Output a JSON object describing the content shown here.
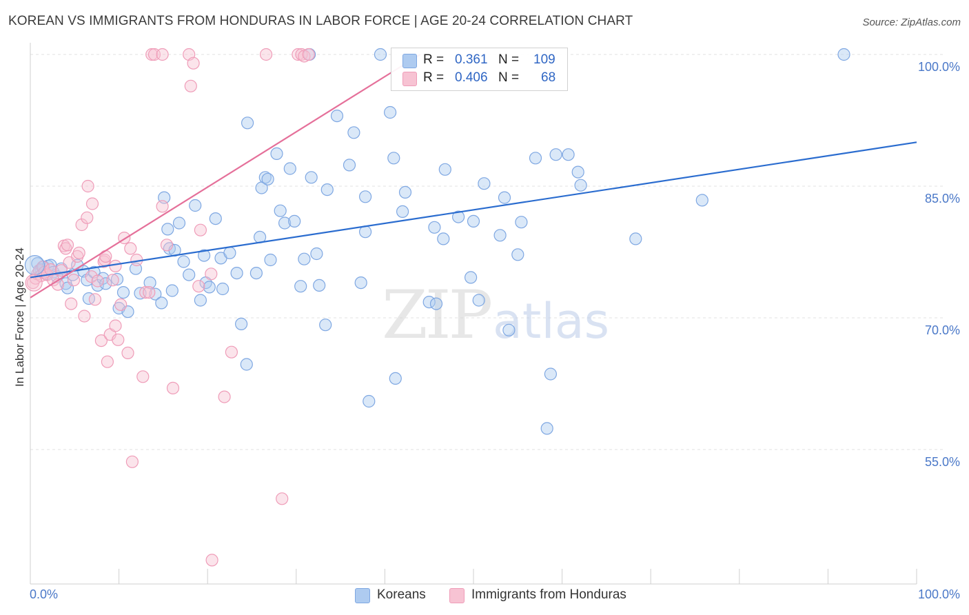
{
  "title": "KOREAN VS IMMIGRANTS FROM HONDURAS IN LABOR FORCE | AGE 20-24 CORRELATION CHART",
  "source": "Source: ZipAtlas.com",
  "watermark": {
    "zip": "ZIP",
    "atlas": "atlas"
  },
  "colors": {
    "korean": "#7ea7e2",
    "korean_fill": "#aecbf0",
    "korean_line": "#2a6ccf",
    "honduras": "#ef9cb8",
    "honduras_fill": "#f7c3d3",
    "honduras_line": "#e5709a",
    "axis_text": "#4a78c8",
    "grid": "#e0e0e0"
  },
  "stats_legend": {
    "rows": [
      {
        "r_label": "R =",
        "r_value": "0.361",
        "n_label": "N =",
        "n_value": "109"
      },
      {
        "r_label": "R =",
        "r_value": "0.406",
        "n_label": "N =",
        "n_value": "68"
      }
    ]
  },
  "bottom_legend": [
    {
      "label": "Koreans"
    },
    {
      "label": "Immigrants from Honduras"
    }
  ],
  "chart_data": {
    "type": "scatter",
    "title": "KOREAN VS IMMIGRANTS FROM HONDURAS IN LABOR FORCE | AGE 20-24 CORRELATION CHART",
    "xlabel": "",
    "ylabel": "In Labor Force | Age 20-24",
    "xlim": [
      0,
      100
    ],
    "ylim": [
      40,
      101
    ],
    "x_tick_labels": [
      "0.0%",
      "100.0%"
    ],
    "y_ticks": [
      55,
      70,
      85,
      100
    ],
    "y_tick_labels": [
      "55.0%",
      "70.0%",
      "85.0%",
      "100.0%"
    ],
    "grid": true,
    "legend_position": "top-center",
    "series": [
      {
        "name": "Koreans",
        "r": 0.361,
        "n": 109,
        "trend": {
          "x": [
            0,
            100
          ],
          "y": [
            74.6,
            90.0
          ]
        },
        "points": [
          [
            0.8,
            76.2
          ],
          [
            1.2,
            75.5
          ],
          [
            1.5,
            75.8
          ],
          [
            1.8,
            75.0
          ],
          [
            2.0,
            75.9
          ],
          [
            2.3,
            76.0
          ],
          [
            2.6,
            75.2
          ],
          [
            3.0,
            74.7
          ],
          [
            3.5,
            75.6
          ],
          [
            4.0,
            73.9
          ],
          [
            4.2,
            73.4
          ],
          [
            4.8,
            74.9
          ],
          [
            5.3,
            76.0
          ],
          [
            6.0,
            75.3
          ],
          [
            6.4,
            74.3
          ],
          [
            6.6,
            72.2
          ],
          [
            7.2,
            75.2
          ],
          [
            7.6,
            73.7
          ],
          [
            8.2,
            74.5
          ],
          [
            8.5,
            73.9
          ],
          [
            9.8,
            74.4
          ],
          [
            10.0,
            71.1
          ],
          [
            10.5,
            72.9
          ],
          [
            11.0,
            70.7
          ],
          [
            11.9,
            75.6
          ],
          [
            12.4,
            72.8
          ],
          [
            13.5,
            74.0
          ],
          [
            14.1,
            72.7
          ],
          [
            14.8,
            71.7
          ],
          [
            15.1,
            83.7
          ],
          [
            15.5,
            80.1
          ],
          [
            15.7,
            77.9
          ],
          [
            16.0,
            73.1
          ],
          [
            16.3,
            77.7
          ],
          [
            16.8,
            80.8
          ],
          [
            17.3,
            76.4
          ],
          [
            17.9,
            74.9
          ],
          [
            18.6,
            82.8
          ],
          [
            19.2,
            72.0
          ],
          [
            19.6,
            77.1
          ],
          [
            19.8,
            74.0
          ],
          [
            20.2,
            73.5
          ],
          [
            20.9,
            81.3
          ],
          [
            21.5,
            76.8
          ],
          [
            21.7,
            73.3
          ],
          [
            22.5,
            77.4
          ],
          [
            23.3,
            75.1
          ],
          [
            23.8,
            69.3
          ],
          [
            24.4,
            64.7
          ],
          [
            24.5,
            92.2
          ],
          [
            25.5,
            75.1
          ],
          [
            25.9,
            79.2
          ],
          [
            26.1,
            84.8
          ],
          [
            26.5,
            86.0
          ],
          [
            26.8,
            85.8
          ],
          [
            27.1,
            76.6
          ],
          [
            27.8,
            88.7
          ],
          [
            28.2,
            82.2
          ],
          [
            28.7,
            80.8
          ],
          [
            29.3,
            87.0
          ],
          [
            29.8,
            81.0
          ],
          [
            30.5,
            73.6
          ],
          [
            30.9,
            76.7
          ],
          [
            31.5,
            100.0
          ],
          [
            31.7,
            86.0
          ],
          [
            32.3,
            77.3
          ],
          [
            32.6,
            73.7
          ],
          [
            33.3,
            69.2
          ],
          [
            33.5,
            84.6
          ],
          [
            34.6,
            93.0
          ],
          [
            36.0,
            87.4
          ],
          [
            36.5,
            91.1
          ],
          [
            37.3,
            74.0
          ],
          [
            37.8,
            79.8
          ],
          [
            37.8,
            83.8
          ],
          [
            38.2,
            60.5
          ],
          [
            39.5,
            100.0
          ],
          [
            40.6,
            93.4
          ],
          [
            41.2,
            63.1
          ],
          [
            41.0,
            88.2
          ],
          [
            42.0,
            82.1
          ],
          [
            42.3,
            84.3
          ],
          [
            45.0,
            71.8
          ],
          [
            45.6,
            80.3
          ],
          [
            45.8,
            71.6
          ],
          [
            46.6,
            79.0
          ],
          [
            46.8,
            86.9
          ],
          [
            48.3,
            81.5
          ],
          [
            49.7,
            74.6
          ],
          [
            50.0,
            81.0
          ],
          [
            50.6,
            72.0
          ],
          [
            51.2,
            85.3
          ],
          [
            53.0,
            79.4
          ],
          [
            53.5,
            83.7
          ],
          [
            54.0,
            68.6
          ],
          [
            55.0,
            77.2
          ],
          [
            55.4,
            80.9
          ],
          [
            57.0,
            88.2
          ],
          [
            58.3,
            57.4
          ],
          [
            58.7,
            63.6
          ],
          [
            59.3,
            88.6
          ],
          [
            60.7,
            88.6
          ],
          [
            61.8,
            86.6
          ],
          [
            62.1,
            85.1
          ],
          [
            68.3,
            79.0
          ],
          [
            75.8,
            83.4
          ],
          [
            91.8,
            100.0
          ]
        ]
      },
      {
        "name": "Immigrants from Honduras",
        "r": 0.406,
        "n": 68,
        "trend": {
          "x": [
            0,
            44
          ],
          "y": [
            72.3,
            100.0
          ]
        },
        "points": [
          [
            0.3,
            74.0
          ],
          [
            0.6,
            74.5
          ],
          [
            0.8,
            75.0
          ],
          [
            1.0,
            75.4
          ],
          [
            1.2,
            74.8
          ],
          [
            1.4,
            75.8
          ],
          [
            1.6,
            75.2
          ],
          [
            1.9,
            74.9
          ],
          [
            2.3,
            75.5
          ],
          [
            2.6,
            74.3
          ],
          [
            3.1,
            73.8
          ],
          [
            3.5,
            75.4
          ],
          [
            3.8,
            78.2
          ],
          [
            4.0,
            77.9
          ],
          [
            4.2,
            78.3
          ],
          [
            4.4,
            76.3
          ],
          [
            4.6,
            71.6
          ],
          [
            4.9,
            74.3
          ],
          [
            5.3,
            77.0
          ],
          [
            5.5,
            77.4
          ],
          [
            5.8,
            80.6
          ],
          [
            6.1,
            70.2
          ],
          [
            6.4,
            81.4
          ],
          [
            6.5,
            85.0
          ],
          [
            6.9,
            74.7
          ],
          [
            7.0,
            83.0
          ],
          [
            7.3,
            72.1
          ],
          [
            7.6,
            74.2
          ],
          [
            8.0,
            67.4
          ],
          [
            8.3,
            76.4
          ],
          [
            8.4,
            76.6
          ],
          [
            8.5,
            77.0
          ],
          [
            8.7,
            65.0
          ],
          [
            9.0,
            68.1
          ],
          [
            9.3,
            74.3
          ],
          [
            9.6,
            69.1
          ],
          [
            9.6,
            75.9
          ],
          [
            9.9,
            67.5
          ],
          [
            10.2,
            71.5
          ],
          [
            10.6,
            79.1
          ],
          [
            11.0,
            66.0
          ],
          [
            11.3,
            77.9
          ],
          [
            11.5,
            53.6
          ],
          [
            12.0,
            76.6
          ],
          [
            12.7,
            63.3
          ],
          [
            13.0,
            72.9
          ],
          [
            13.4,
            72.9
          ],
          [
            13.7,
            100.0
          ],
          [
            14.0,
            100.0
          ],
          [
            14.9,
            100.0
          ],
          [
            14.9,
            82.7
          ],
          [
            15.4,
            78.3
          ],
          [
            16.1,
            62.0
          ],
          [
            17.9,
            100.0
          ],
          [
            18.1,
            96.4
          ],
          [
            18.4,
            99.0
          ],
          [
            19.0,
            73.6
          ],
          [
            19.2,
            80.0
          ],
          [
            20.4,
            75.0
          ],
          [
            20.5,
            42.4
          ],
          [
            21.9,
            61.0
          ],
          [
            22.7,
            66.1
          ],
          [
            26.6,
            100.0
          ],
          [
            28.4,
            49.4
          ],
          [
            30.2,
            100.0
          ],
          [
            30.6,
            100.0
          ],
          [
            30.9,
            99.8
          ],
          [
            31.4,
            100.0
          ]
        ]
      }
    ]
  }
}
